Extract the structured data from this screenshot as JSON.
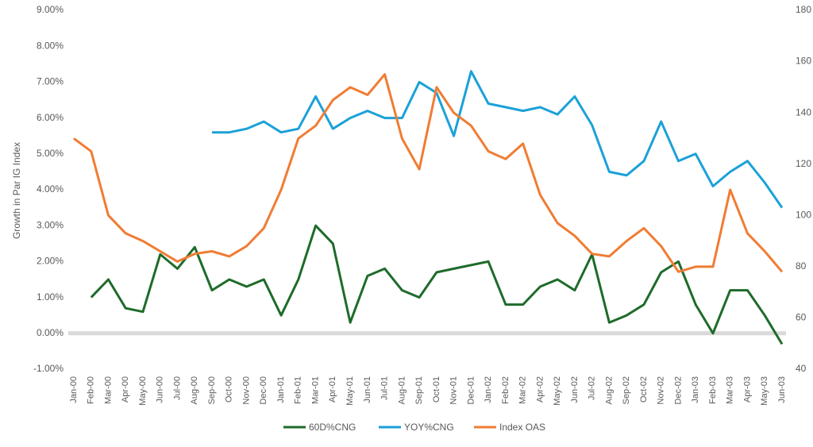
{
  "chart_data": {
    "type": "line",
    "y_axis_label": "Growth in Par IG Index",
    "categories": [
      "Jan-00",
      "Feb-00",
      "Mar-00",
      "Apr-00",
      "May-00",
      "Jun-00",
      "Jul-00",
      "Aug-00",
      "Sep-00",
      "Oct-00",
      "Nov-00",
      "Dec-00",
      "Jan-01",
      "Feb-01",
      "Mar-01",
      "Apr-01",
      "May-01",
      "Jun-01",
      "Jul-01",
      "Aug-01",
      "Sep-01",
      "Oct-01",
      "Nov-01",
      "Dec-01",
      "Jan-02",
      "Feb-02",
      "Mar-02",
      "Apr-02",
      "May-02",
      "Jun-02",
      "Jul-02",
      "Aug-02",
      "Sep-02",
      "Oct-02",
      "Nov-02",
      "Dec-02",
      "Jan-03",
      "Feb-03",
      "Mar-03",
      "Apr-03",
      "May-03",
      "Jun-03"
    ],
    "series": [
      {
        "name": "60D%CNG",
        "color": "#1e6b2a",
        "values": [
          null,
          1.0,
          1.5,
          0.7,
          0.6,
          2.2,
          1.8,
          2.4,
          1.2,
          1.5,
          1.3,
          1.5,
          0.5,
          1.5,
          3.0,
          2.5,
          0.3,
          1.6,
          1.8,
          1.2,
          1.0,
          1.7,
          1.8,
          1.9,
          2.0,
          0.8,
          0.8,
          1.3,
          1.5,
          1.2,
          2.2,
          0.3,
          0.5,
          0.8,
          1.7,
          2.0,
          0.8,
          0.0,
          1.2,
          1.2,
          0.5,
          -0.3
        ]
      },
      {
        "name": "YOY%CNG",
        "color": "#1ba1d8",
        "values": [
          null,
          null,
          null,
          null,
          null,
          null,
          null,
          null,
          5.6,
          5.6,
          5.7,
          5.9,
          5.6,
          5.7,
          6.6,
          5.7,
          6.0,
          6.2,
          6.0,
          6.0,
          7.0,
          6.7,
          5.5,
          7.3,
          6.4,
          6.3,
          6.2,
          6.3,
          6.1,
          6.6,
          5.8,
          4.5,
          4.4,
          4.8,
          5.9,
          4.8,
          5.0,
          4.1,
          4.5,
          4.8,
          4.2,
          3.5
        ]
      },
      {
        "name": "Index OAS",
        "color": "#f07c33",
        "axis": "y2",
        "values": [
          130,
          125,
          100,
          93,
          90,
          86,
          82,
          85,
          86,
          84,
          88,
          95,
          110,
          130,
          135,
          145,
          150,
          147,
          155,
          130,
          118,
          150,
          140,
          135,
          125,
          122,
          128,
          108,
          97,
          92,
          85,
          84,
          90,
          95,
          88,
          78,
          80,
          80,
          110,
          93,
          86,
          78
        ]
      }
    ],
    "ylim": [
      -1,
      9
    ],
    "yticks": [
      {
        "value": -1,
        "label": "-1.00%"
      },
      {
        "value": 0,
        "label": "0.00%"
      },
      {
        "value": 1,
        "label": "1.00%"
      },
      {
        "value": 2,
        "label": "2.00%"
      },
      {
        "value": 3,
        "label": "3.00%"
      },
      {
        "value": 4,
        "label": "4.00%"
      },
      {
        "value": 5,
        "label": "5.00%"
      },
      {
        "value": 6,
        "label": "6.00%"
      },
      {
        "value": 7,
        "label": "7.00%"
      },
      {
        "value": 8,
        "label": "8.00%"
      },
      {
        "value": 9,
        "label": "9.00%"
      }
    ],
    "y2lim": [
      40,
      180
    ],
    "y2ticks": [
      40,
      60,
      80,
      100,
      120,
      140,
      160,
      180
    ],
    "zero_line_color": "#d9d9d9"
  }
}
